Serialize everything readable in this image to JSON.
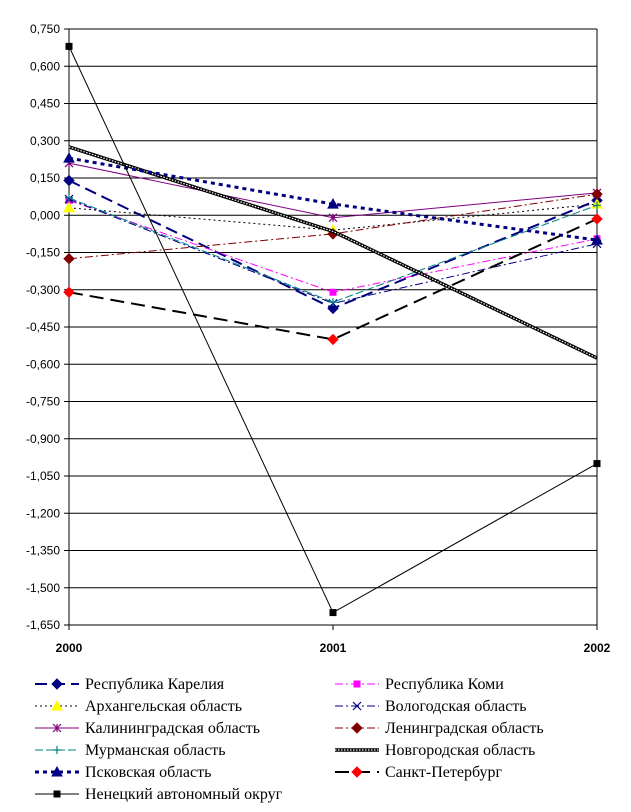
{
  "chart_data": {
    "type": "line",
    "title": "",
    "xlabel": "",
    "ylabel": "",
    "x": [
      "2000",
      "2001",
      "2002"
    ],
    "ylim": [
      -1.65,
      0.75
    ],
    "yticks": [
      0.75,
      0.6,
      0.45,
      0.3,
      0.15,
      0.0,
      -0.15,
      -0.3,
      -0.45,
      -0.6,
      -0.75,
      -0.9,
      -1.05,
      -1.2,
      -1.35,
      -1.5,
      -1.65
    ],
    "ytick_labels": [
      "0,750",
      "0,600",
      "0,450",
      "0,300",
      "0,150",
      "0,000",
      "-0,150",
      "-0,300",
      "-0,450",
      "-0,600",
      "-0,750",
      "-0,900",
      "-1,050",
      "-1,200",
      "-1,350",
      "-1,500",
      "-1,650"
    ],
    "grid": "horizontal",
    "legend_position": "bottom",
    "series": [
      {
        "name": "Республика Карелия",
        "values": [
          0.14,
          -0.375,
          0.06
        ],
        "color": "#000080",
        "dash": "12,6",
        "width": 2,
        "marker": "diamond"
      },
      {
        "name": "Республика Коми",
        "values": [
          0.06,
          -0.31,
          -0.095
        ],
        "color": "#ff00ff",
        "dash": "8,3,2,3",
        "width": 1,
        "marker": "square"
      },
      {
        "name": "Архангельская область",
        "values": [
          0.03,
          -0.06,
          0.045
        ],
        "color": "#000000",
        "dash": "2,3",
        "width": 1,
        "marker": "triangle",
        "marker_color": "#ffff00"
      },
      {
        "name": "Вологодская область",
        "values": [
          0.065,
          -0.355,
          -0.115
        ],
        "color": "#000080",
        "dash": "8,3,2,3",
        "width": 1,
        "marker": "x"
      },
      {
        "name": "Калининградская область",
        "values": [
          0.21,
          -0.01,
          0.09
        ],
        "color": "#800080",
        "dash": "",
        "width": 1,
        "marker": "star"
      },
      {
        "name": "Ленинградская область",
        "values": [
          -0.175,
          -0.075,
          0.085
        ],
        "color": "#800000",
        "dash": "8,3,2,3",
        "width": 1,
        "marker": "diamond"
      },
      {
        "name": "Мурманская область",
        "values": [
          0.07,
          -0.35,
          0.04
        ],
        "color": "#008080",
        "dash": "8,3",
        "width": 1,
        "marker": "plus"
      },
      {
        "name": "Новгородская область",
        "values": [
          0.275,
          -0.065,
          -0.575
        ],
        "color": "#000000",
        "dash": "",
        "width": 3,
        "marker": "none",
        "double": true
      },
      {
        "name": "Псковская область",
        "values": [
          0.23,
          0.045,
          -0.1
        ],
        "color": "#000080",
        "dash": "4,4",
        "width": 3,
        "marker": "triangle"
      },
      {
        "name": "Санкт-Петербург",
        "values": [
          -0.31,
          -0.5,
          -0.015
        ],
        "color": "#000000",
        "dash": "14,7",
        "width": 2,
        "marker": "diamond",
        "marker_color": "#ff0000"
      },
      {
        "name": "Ненецкий автономный округ",
        "values": [
          0.68,
          -1.6,
          -1.0
        ],
        "color": "#000000",
        "dash": "",
        "width": 1,
        "marker": "square"
      }
    ]
  }
}
